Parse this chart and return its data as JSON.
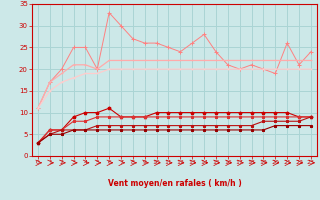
{
  "x": [
    0,
    1,
    2,
    3,
    4,
    5,
    6,
    7,
    8,
    9,
    10,
    11,
    12,
    13,
    14,
    15,
    16,
    17,
    18,
    19,
    20,
    21,
    22,
    23
  ],
  "line1": [
    11,
    17,
    20,
    25,
    25,
    20,
    33,
    30,
    27,
    26,
    26,
    25,
    24,
    26,
    28,
    24,
    21,
    20,
    21,
    20,
    19,
    26,
    21,
    24
  ],
  "line2": [
    11,
    17,
    19,
    21,
    21,
    20,
    22,
    22,
    22,
    22,
    22,
    22,
    22,
    22,
    22,
    22,
    22,
    22,
    22,
    22,
    22,
    22,
    22,
    22
  ],
  "line3": [
    11,
    15,
    17,
    18,
    19,
    19,
    20,
    20,
    20,
    20,
    20,
    20,
    20,
    20,
    20,
    20,
    20,
    20,
    20,
    20,
    20,
    20,
    20,
    20
  ],
  "line4": [
    3,
    6,
    6,
    9,
    10,
    10,
    11,
    9,
    9,
    9,
    10,
    10,
    10,
    10,
    10,
    10,
    10,
    10,
    10,
    10,
    10,
    10,
    9,
    9
  ],
  "line5": [
    3,
    6,
    6,
    8,
    8,
    9,
    9,
    9,
    9,
    9,
    9,
    9,
    9,
    9,
    9,
    9,
    9,
    9,
    9,
    9,
    9,
    9,
    9,
    9
  ],
  "line6": [
    3,
    5,
    6,
    6,
    6,
    7,
    7,
    7,
    7,
    7,
    7,
    7,
    7,
    7,
    7,
    7,
    7,
    7,
    7,
    8,
    8,
    8,
    8,
    9
  ],
  "line7": [
    3,
    5,
    5,
    6,
    6,
    6,
    6,
    6,
    6,
    6,
    6,
    6,
    6,
    6,
    6,
    6,
    6,
    6,
    6,
    6,
    7,
    7,
    7,
    7
  ],
  "bg_color": "#cce8e8",
  "grid_color": "#aad4d4",
  "line1_color": "#ff8080",
  "line2_color": "#ffaaaa",
  "line3_color": "#ffcccc",
  "line4_color": "#cc0000",
  "line5_color": "#dd3333",
  "line6_color": "#bb1111",
  "line7_color": "#990000",
  "xlabel": "Vent moyen/en rafales ( km/h )",
  "ylim": [
    0,
    35
  ],
  "xlim": [
    -0.5,
    23.5
  ],
  "yticks": [
    0,
    5,
    10,
    15,
    20,
    25,
    30,
    35
  ],
  "xticks": [
    0,
    1,
    2,
    3,
    4,
    5,
    6,
    7,
    8,
    9,
    10,
    11,
    12,
    13,
    14,
    15,
    16,
    17,
    18,
    19,
    20,
    21,
    22,
    23
  ],
  "arrow_color": "#cc0000",
  "tick_color": "#cc0000",
  "spine_color": "#cc0000"
}
